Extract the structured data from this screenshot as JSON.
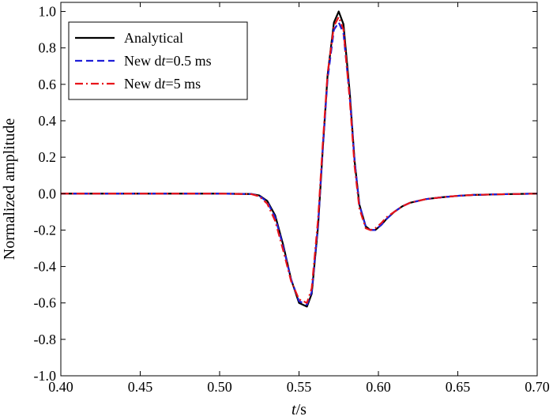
{
  "chart_data": {
    "type": "line",
    "xlabel_italic": "t",
    "xlabel_unit": "/s",
    "ylabel": "Normalized amplitude",
    "xlim": [
      0.4,
      0.7
    ],
    "ylim": [
      -1.0,
      1.05
    ],
    "x_ticks": [
      0.4,
      0.45,
      0.5,
      0.55,
      0.6,
      0.65,
      0.7
    ],
    "x_tick_labels": [
      "0.40",
      "0.45",
      "0.50",
      "0.55",
      "0.60",
      "0.65",
      "0.70"
    ],
    "y_ticks": [
      -1.0,
      -0.8,
      -0.6,
      -0.4,
      -0.2,
      0.0,
      0.2,
      0.4,
      0.6,
      0.8,
      1.0
    ],
    "y_tick_labels": [
      "-1.0",
      "-0.8",
      "-0.6",
      "-0.4",
      "-0.2",
      "0.0",
      "0.2",
      "0.4",
      "0.6",
      "0.8",
      "1.0"
    ],
    "grid": false,
    "legend_position": "top-left",
    "series": [
      {
        "name": "Analytical",
        "legend_parts": [
          {
            "text": "Analytical",
            "italic": false
          }
        ],
        "color": "#000000",
        "style": "solid",
        "x": [
          0.4,
          0.45,
          0.5,
          0.52,
          0.525,
          0.53,
          0.535,
          0.54,
          0.545,
          0.55,
          0.555,
          0.558,
          0.562,
          0.565,
          0.568,
          0.572,
          0.575,
          0.578,
          0.582,
          0.585,
          0.588,
          0.592,
          0.595,
          0.598,
          0.602,
          0.605,
          0.61,
          0.615,
          0.62,
          0.63,
          0.64,
          0.65,
          0.66,
          0.68,
          0.7
        ],
        "y": [
          0.0,
          0.0,
          0.0,
          -0.002,
          -0.01,
          -0.04,
          -0.12,
          -0.28,
          -0.47,
          -0.6,
          -0.62,
          -0.55,
          -0.18,
          0.25,
          0.65,
          0.94,
          1.0,
          0.93,
          0.55,
          0.18,
          -0.06,
          -0.18,
          -0.2,
          -0.2,
          -0.17,
          -0.14,
          -0.1,
          -0.07,
          -0.05,
          -0.03,
          -0.02,
          -0.012,
          -0.007,
          -0.003,
          0.0
        ]
      },
      {
        "name": "New dt=0.5 ms",
        "legend_parts": [
          {
            "text": "New d",
            "italic": false
          },
          {
            "text": "t",
            "italic": true
          },
          {
            "text": "=0.5 ms",
            "italic": false
          }
        ],
        "color": "#1e1ed8",
        "style": "dashed",
        "x": [
          0.4,
          0.45,
          0.5,
          0.52,
          0.525,
          0.53,
          0.535,
          0.54,
          0.545,
          0.55,
          0.555,
          0.558,
          0.562,
          0.565,
          0.568,
          0.572,
          0.575,
          0.578,
          0.582,
          0.585,
          0.588,
          0.592,
          0.595,
          0.598,
          0.602,
          0.605,
          0.61,
          0.615,
          0.62,
          0.63,
          0.64,
          0.65,
          0.66,
          0.68,
          0.7
        ],
        "y": [
          0.0,
          0.0,
          0.0,
          -0.002,
          -0.012,
          -0.045,
          -0.13,
          -0.29,
          -0.47,
          -0.59,
          -0.61,
          -0.54,
          -0.17,
          0.25,
          0.63,
          0.9,
          0.94,
          0.88,
          0.53,
          0.18,
          -0.06,
          -0.18,
          -0.2,
          -0.2,
          -0.17,
          -0.14,
          -0.1,
          -0.07,
          -0.05,
          -0.03,
          -0.02,
          -0.012,
          -0.007,
          -0.003,
          0.0
        ]
      },
      {
        "name": "New dt=5 ms",
        "legend_parts": [
          {
            "text": "New d",
            "italic": false
          },
          {
            "text": "t",
            "italic": true
          },
          {
            "text": "=5 ms",
            "italic": false
          }
        ],
        "color": "#e8141a",
        "style": "dashdot",
        "x": [
          0.4,
          0.45,
          0.5,
          0.52,
          0.525,
          0.53,
          0.535,
          0.54,
          0.545,
          0.55,
          0.555,
          0.558,
          0.562,
          0.565,
          0.568,
          0.572,
          0.575,
          0.578,
          0.582,
          0.585,
          0.588,
          0.592,
          0.595,
          0.598,
          0.602,
          0.605,
          0.61,
          0.615,
          0.62,
          0.63,
          0.64,
          0.65,
          0.66,
          0.68,
          0.7
        ],
        "y": [
          0.0,
          0.0,
          0.0,
          -0.003,
          -0.015,
          -0.055,
          -0.15,
          -0.31,
          -0.48,
          -0.58,
          -0.6,
          -0.52,
          -0.14,
          0.28,
          0.66,
          0.92,
          0.97,
          0.9,
          0.51,
          0.15,
          -0.08,
          -0.19,
          -0.2,
          -0.19,
          -0.16,
          -0.13,
          -0.1,
          -0.07,
          -0.05,
          -0.03,
          -0.02,
          -0.012,
          -0.007,
          -0.003,
          0.0
        ]
      }
    ]
  }
}
